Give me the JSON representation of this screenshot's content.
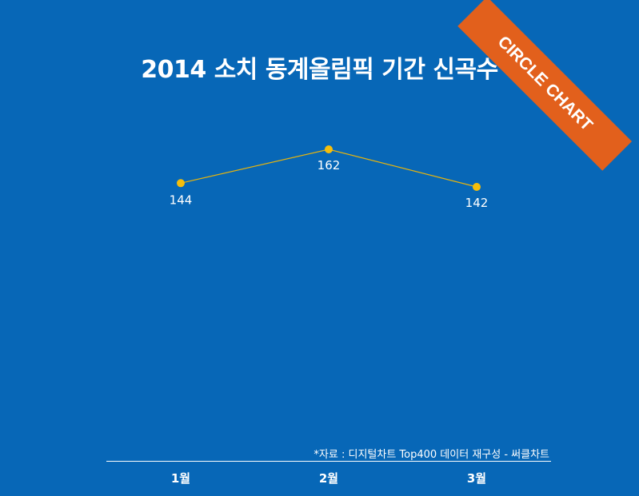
{
  "badge": "CIRCLE CHART",
  "source": "*자료 : 디지털차트 Top400 데이터 재구성 - 써클차트",
  "colors": {
    "background": "#0767b7",
    "line": "#e6b40e",
    "marker": "#f5be0b",
    "text": "#ffffff",
    "badge": "#e2601c"
  },
  "chart_data": {
    "type": "line",
    "title": "2014 소치 동계올림픽 기간 신곡수",
    "categories": [
      "1월",
      "2월",
      "3월"
    ],
    "values": [
      144,
      162,
      142
    ],
    "data_labels": [
      "144",
      "162",
      "142"
    ],
    "grid": false,
    "legend": "none"
  }
}
